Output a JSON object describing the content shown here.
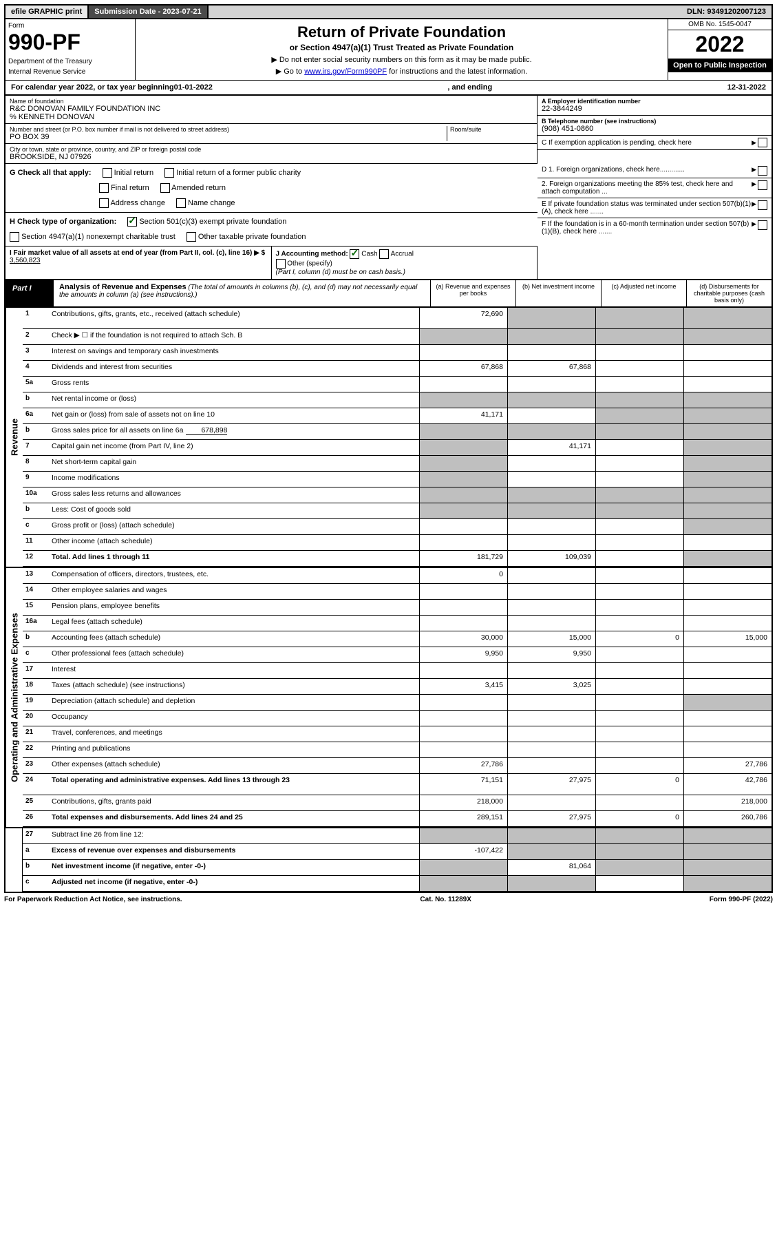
{
  "top_bar": {
    "efile": "efile GRAPHIC print",
    "submission_label": "Submission Date - 2023-07-21",
    "dln": "DLN: 93491202007123"
  },
  "header": {
    "form_label": "Form",
    "form_number": "990-PF",
    "dept": "Department of the Treasury",
    "irs": "Internal Revenue Service",
    "title": "Return of Private Foundation",
    "subtitle": "or Section 4947(a)(1) Trust Treated as Private Foundation",
    "instr1": "▶ Do not enter social security numbers on this form as it may be made public.",
    "instr2_pre": "▶ Go to ",
    "instr2_link": "www.irs.gov/Form990PF",
    "instr2_post": " for instructions and the latest information.",
    "omb": "OMB No. 1545-0047",
    "year": "2022",
    "inspection": "Open to Public Inspection"
  },
  "cal_year": {
    "pre": "For calendar year 2022, or tax year beginning ",
    "begin": "01-01-2022",
    "mid": " , and ending ",
    "end": "12-31-2022"
  },
  "entity": {
    "name_label": "Name of foundation",
    "name": "R&C DONOVAN FAMILY FOUNDATION INC",
    "care_of": "% KENNETH DONOVAN",
    "addr_label": "Number and street (or P.O. box number if mail is not delivered to street address)",
    "addr": "PO BOX 39",
    "room_label": "Room/suite",
    "city_label": "City or town, state or province, country, and ZIP or foreign postal code",
    "city": "BROOKSIDE, NJ  07926",
    "ein_label": "A Employer identification number",
    "ein": "22-3844249",
    "phone_label": "B Telephone number (see instructions)",
    "phone": "(908) 451-0860",
    "c_label": "C If exemption application is pending, check here",
    "d1_label": "D 1. Foreign organizations, check here.............",
    "d2_label": "2. Foreign organizations meeting the 85% test, check here and attach computation ...",
    "e_label": "E If private foundation status was terminated under section 507(b)(1)(A), check here .......",
    "f_label": "F If the foundation is in a 60-month termination under section 507(b)(1)(B), check here ......."
  },
  "checks": {
    "g_label": "G Check all that apply:",
    "initial": "Initial return",
    "initial_former": "Initial return of a former public charity",
    "final": "Final return",
    "amended": "Amended return",
    "addr_change": "Address change",
    "name_change": "Name change",
    "h_label": "H Check type of organization:",
    "h_501c3": "Section 501(c)(3) exempt private foundation",
    "h_4947": "Section 4947(a)(1) nonexempt charitable trust",
    "h_other": "Other taxable private foundation",
    "i_label": "I Fair market value of all assets at end of year (from Part II, col. (c), line 16) ▶ $",
    "i_value": "3,560,823",
    "j_label": "J Accounting method:",
    "j_cash": "Cash",
    "j_accrual": "Accrual",
    "j_other": "Other (specify)",
    "j_note": "(Part I, column (d) must be on cash basis.)"
  },
  "part1": {
    "label": "Part I",
    "title": "Analysis of Revenue and Expenses",
    "note": "(The total of amounts in columns (b), (c), and (d) may not necessarily equal the amounts in column (a) (see instructions).)",
    "col_a": "(a) Revenue and expenses per books",
    "col_b": "(b) Net investment income",
    "col_c": "(c) Adjusted net income",
    "col_d": "(d) Disbursements for charitable purposes (cash basis only)"
  },
  "vert": {
    "revenue": "Revenue",
    "expenses": "Operating and Administrative Expenses"
  },
  "rows": {
    "r1": {
      "n": "1",
      "d": "Contributions, gifts, grants, etc., received (attach schedule)",
      "a": "72,690"
    },
    "r2": {
      "n": "2",
      "d": "Check ▶ ☐ if the foundation is not required to attach Sch. B"
    },
    "r3": {
      "n": "3",
      "d": "Interest on savings and temporary cash investments"
    },
    "r4": {
      "n": "4",
      "d": "Dividends and interest from securities",
      "a": "67,868",
      "b": "67,868"
    },
    "r5a": {
      "n": "5a",
      "d": "Gross rents"
    },
    "r5b": {
      "n": "b",
      "d": "Net rental income or (loss)"
    },
    "r6a": {
      "n": "6a",
      "d": "Net gain or (loss) from sale of assets not on line 10",
      "a": "41,171"
    },
    "r6b": {
      "n": "b",
      "d": "Gross sales price for all assets on line 6a",
      "inline": "678,898"
    },
    "r7": {
      "n": "7",
      "d": "Capital gain net income (from Part IV, line 2)",
      "b": "41,171"
    },
    "r8": {
      "n": "8",
      "d": "Net short-term capital gain"
    },
    "r9": {
      "n": "9",
      "d": "Income modifications"
    },
    "r10a": {
      "n": "10a",
      "d": "Gross sales less returns and allowances"
    },
    "r10b": {
      "n": "b",
      "d": "Less: Cost of goods sold"
    },
    "r10c": {
      "n": "c",
      "d": "Gross profit or (loss) (attach schedule)"
    },
    "r11": {
      "n": "11",
      "d": "Other income (attach schedule)"
    },
    "r12": {
      "n": "12",
      "d": "Total. Add lines 1 through 11",
      "a": "181,729",
      "b": "109,039",
      "bold": true
    },
    "r13": {
      "n": "13",
      "d": "Compensation of officers, directors, trustees, etc.",
      "a": "0"
    },
    "r14": {
      "n": "14",
      "d": "Other employee salaries and wages"
    },
    "r15": {
      "n": "15",
      "d": "Pension plans, employee benefits"
    },
    "r16a": {
      "n": "16a",
      "d": "Legal fees (attach schedule)"
    },
    "r16b": {
      "n": "b",
      "d": "Accounting fees (attach schedule)",
      "a": "30,000",
      "b": "15,000",
      "c": "0",
      "dd": "15,000"
    },
    "r16c": {
      "n": "c",
      "d": "Other professional fees (attach schedule)",
      "a": "9,950",
      "b": "9,950"
    },
    "r17": {
      "n": "17",
      "d": "Interest"
    },
    "r18": {
      "n": "18",
      "d": "Taxes (attach schedule) (see instructions)",
      "a": "3,415",
      "b": "3,025"
    },
    "r19": {
      "n": "19",
      "d": "Depreciation (attach schedule) and depletion"
    },
    "r20": {
      "n": "20",
      "d": "Occupancy"
    },
    "r21": {
      "n": "21",
      "d": "Travel, conferences, and meetings"
    },
    "r22": {
      "n": "22",
      "d": "Printing and publications"
    },
    "r23": {
      "n": "23",
      "d": "Other expenses (attach schedule)",
      "a": "27,786",
      "dd": "27,786"
    },
    "r24": {
      "n": "24",
      "d": "Total operating and administrative expenses. Add lines 13 through 23",
      "a": "71,151",
      "b": "27,975",
      "c": "0",
      "dd": "42,786",
      "bold": true
    },
    "r25": {
      "n": "25",
      "d": "Contributions, gifts, grants paid",
      "a": "218,000",
      "dd": "218,000"
    },
    "r26": {
      "n": "26",
      "d": "Total expenses and disbursements. Add lines 24 and 25",
      "a": "289,151",
      "b": "27,975",
      "c": "0",
      "dd": "260,786",
      "bold": true
    },
    "r27": {
      "n": "27",
      "d": "Subtract line 26 from line 12:"
    },
    "r27a": {
      "n": "a",
      "d": "Excess of revenue over expenses and disbursements",
      "a": "-107,422",
      "bold": true
    },
    "r27b": {
      "n": "b",
      "d": "Net investment income (if negative, enter -0-)",
      "b": "81,064",
      "bold": true
    },
    "r27c": {
      "n": "c",
      "d": "Adjusted net income (if negative, enter -0-)",
      "bold": true
    }
  },
  "footer": {
    "left": "For Paperwork Reduction Act Notice, see instructions.",
    "mid": "Cat. No. 11289X",
    "right": "Form 990-PF (2022)"
  }
}
